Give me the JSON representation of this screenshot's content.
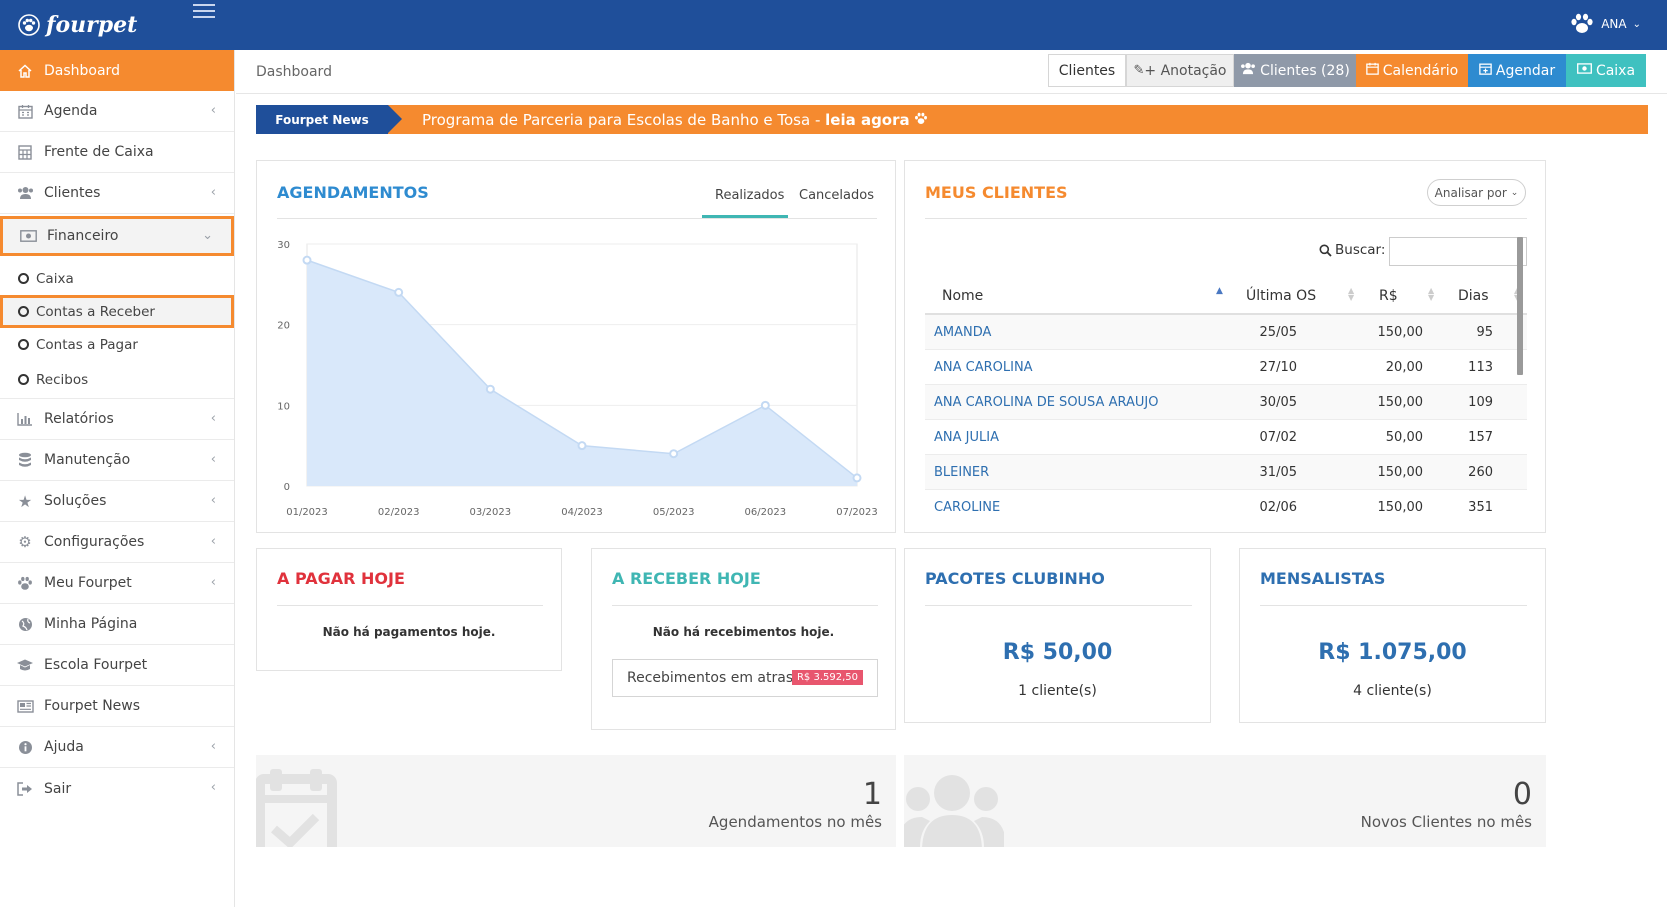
{
  "app": {
    "brand": "fourpet",
    "user_name": "ANA"
  },
  "sidebar": {
    "items": [
      {
        "label": "Dashboard",
        "icon": "home-icon"
      },
      {
        "label": "Agenda",
        "icon": "calendar-icon"
      },
      {
        "label": "Frente de Caixa",
        "icon": "calculator-icon"
      },
      {
        "label": "Clientes",
        "icon": "users-icon"
      },
      {
        "label": "Financeiro",
        "icon": "money-icon"
      },
      {
        "label": "Relatórios",
        "icon": "bar-chart-icon"
      },
      {
        "label": "Manutenção",
        "icon": "database-icon"
      },
      {
        "label": "Soluções",
        "icon": "star-icon"
      },
      {
        "label": "Configurações",
        "icon": "gears-icon"
      },
      {
        "label": "Meu Fourpet",
        "icon": "paw-icon"
      },
      {
        "label": "Minha Página",
        "icon": "globe-icon"
      },
      {
        "label": "Escola Fourpet",
        "icon": "graduation-cap-icon"
      },
      {
        "label": "Fourpet News",
        "icon": "newspaper-icon"
      },
      {
        "label": "Ajuda",
        "icon": "info-icon"
      },
      {
        "label": "Sair",
        "icon": "sign-out-icon"
      }
    ],
    "financeiro_sub": [
      "Caixa",
      "Contas a Receber",
      "Contas a Pagar",
      "Recibos"
    ]
  },
  "header": {
    "breadcrumb": "Dashboard",
    "buttons": {
      "clientes": "Clientes",
      "anotacao": "+ Anotação",
      "clientes_count": "Clientes (28)",
      "calendario": "Calendário",
      "agendar": "Agendar",
      "caixa": "Caixa"
    }
  },
  "news": {
    "tag": "Fourpet News",
    "text": "Programa de Parceria para Escolas de Banho e Tosa - ",
    "link": "leia agora"
  },
  "agendamentos": {
    "title": "AGENDAMENTOS",
    "tab_realizados": "Realizados",
    "tab_cancelados": "Cancelados"
  },
  "chart_data": {
    "type": "area",
    "x": [
      "01/2023",
      "02/2023",
      "03/2023",
      "04/2023",
      "05/2023",
      "06/2023",
      "07/2023"
    ],
    "series": [
      {
        "values": [
          28,
          24,
          12,
          5,
          4,
          10,
          1
        ]
      }
    ],
    "ylim": [
      0,
      30
    ],
    "yticks": [
      0,
      10,
      20,
      30
    ],
    "grid": true,
    "colors": {
      "fill": "#d9e8fa",
      "line": "#c3d9f3",
      "point": "#c3d9f3"
    }
  },
  "clientes": {
    "title": "MEUS CLIENTES",
    "analisar_btn": "Analisar por",
    "search_label": "Buscar:",
    "search_value": "",
    "headers": {
      "nome": "Nome",
      "ultima_os": "Última OS",
      "valor": "R$",
      "dias": "Dias"
    },
    "rows": [
      {
        "nome": "AMANDA",
        "os": "25/05",
        "valor": "150,00",
        "dias": "95"
      },
      {
        "nome": "ANA CAROLINA",
        "os": "27/10",
        "valor": "20,00",
        "dias": "113"
      },
      {
        "nome": "ANA CAROLINA DE SOUSA ARAUJO",
        "os": "30/05",
        "valor": "150,00",
        "dias": "109"
      },
      {
        "nome": "ANA JULIA",
        "os": "07/02",
        "valor": "50,00",
        "dias": "157"
      },
      {
        "nome": "BLEINER",
        "os": "31/05",
        "valor": "150,00",
        "dias": "260"
      },
      {
        "nome": "CAROLINE",
        "os": "02/06",
        "valor": "150,00",
        "dias": "351"
      }
    ]
  },
  "pagar": {
    "title": "A PAGAR HOJE",
    "msg": "Não há pagamentos hoje."
  },
  "receber": {
    "title": "A RECEBER HOJE",
    "msg": "Não há recebimentos hoje.",
    "atraso_label": "Recebimentos em atraso",
    "atraso_valor": "R$ 3.592,50"
  },
  "clubinho": {
    "title": "PACOTES CLUBINHO",
    "valor": "R$ 50,00",
    "clientes": "1 cliente(s)"
  },
  "mensalistas": {
    "title": "MENSALISTAS",
    "valor": "R$ 1.075,00",
    "clientes": "4 cliente(s)"
  },
  "stats": {
    "agendamentos_num": "1",
    "agendamentos_label": "Agendamentos no mês",
    "novos_num": "0",
    "novos_label": "Novos Clientes no mês"
  },
  "colors": {
    "primary": "#1f4f9a",
    "accent": "#f58a2f",
    "teal": "#3fb6b3",
    "blue": "#2e8bd0",
    "gray_btn": "#8f99a8",
    "red_title": "#e0323c",
    "badge_red": "#e8566e"
  }
}
